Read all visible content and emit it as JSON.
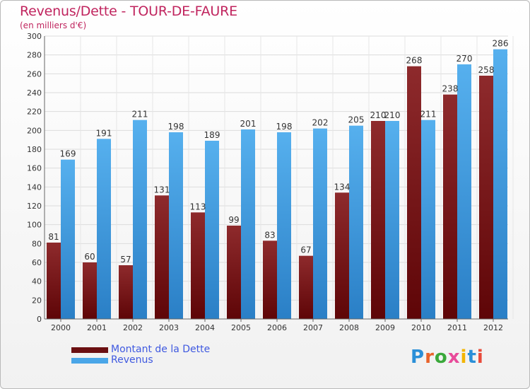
{
  "title": "Revenus/Dette - TOUR-DE-FAURE",
  "subtitle": "(en milliers d'€)",
  "logo": {
    "text": "Proxiti",
    "letter_colors": [
      "#2a8fd8",
      "#e8632b",
      "#3aa83a",
      "#e84b9a",
      "#f2b400",
      "#2a8fd8",
      "#e84b3a"
    ]
  },
  "chart_data": {
    "type": "bar",
    "title": "Revenus/Dette - TOUR-DE-FAURE",
    "ylabel": "(en milliers d'€)",
    "categories": [
      "2000",
      "2001",
      "2002",
      "2003",
      "2004",
      "2005",
      "2006",
      "2007",
      "2008",
      "2009",
      "2010",
      "2011",
      "2012"
    ],
    "ylim": [
      0,
      300
    ],
    "yticks": [
      0,
      20,
      40,
      60,
      80,
      100,
      120,
      140,
      160,
      180,
      200,
      220,
      240,
      260,
      280,
      300
    ],
    "grid": true,
    "legend_position": "bottom-left",
    "series": [
      {
        "name": "Montant de la Dette",
        "color": "#7a1416",
        "values": [
          81,
          60,
          57,
          131,
          113,
          99,
          83,
          67,
          134,
          210,
          268,
          238,
          258
        ]
      },
      {
        "name": "Revenus",
        "color": "#4aa6e8",
        "values": [
          169,
          191,
          211,
          198,
          189,
          201,
          198,
          202,
          205,
          210,
          211,
          270,
          286
        ]
      }
    ]
  }
}
